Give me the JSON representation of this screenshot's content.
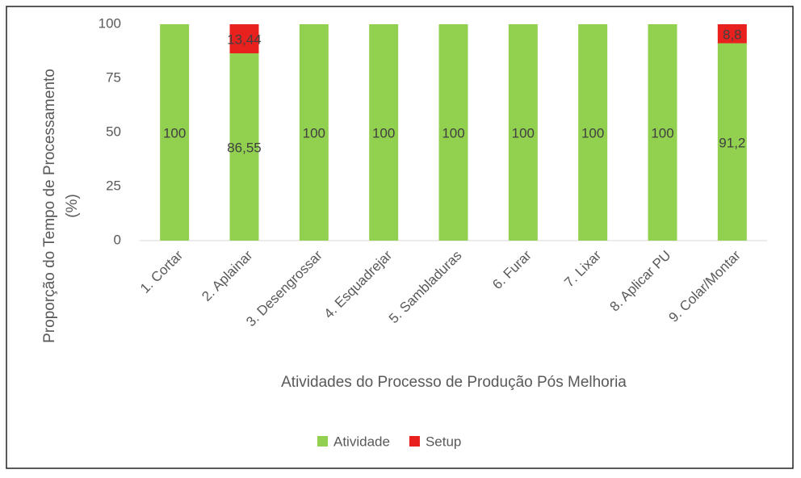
{
  "chart_data": {
    "type": "stacked-bar",
    "xlabel": "Atividades do Processo de Produção Pós Melhoria",
    "ylabel": [
      "Proporção do Tempo de Processamento",
      "(%)"
    ],
    "categories": [
      "1. Cortar",
      "2. Aplainar",
      "3. Desengrossar",
      "4. Esquadrejar",
      "5. Sambladuras",
      "6. Furar",
      "7. Lixar",
      "8. Aplicar PU",
      "9. Colar/Montar"
    ],
    "series": [
      {
        "name": "Atividade",
        "color": "#92d050",
        "values": [
          100,
          86.55,
          100,
          100,
          100,
          100,
          100,
          100,
          91.2
        ],
        "value_labels": [
          "100",
          "86,55",
          "100",
          "100",
          "100",
          "100",
          "100",
          "100",
          "91,2"
        ]
      },
      {
        "name": "Setup",
        "color": "#e8201e",
        "values": [
          0,
          13.44,
          0,
          0,
          0,
          0,
          0,
          0,
          8.8
        ],
        "value_labels": [
          null,
          "13,44",
          null,
          null,
          null,
          null,
          null,
          null,
          "8,8"
        ]
      }
    ],
    "ylim": [
      0,
      100
    ],
    "yticks": [
      0,
      25,
      50,
      75,
      100
    ],
    "grid": false,
    "legend": "bottom"
  }
}
